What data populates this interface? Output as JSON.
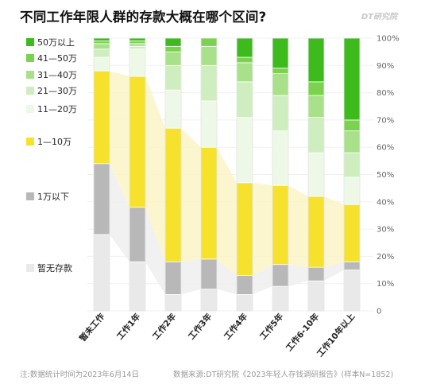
{
  "title": "不同工作年限人群的存款大概在哪个区间?",
  "logo": "DT研究院",
  "footer": {
    "note": "注:数据统计时间为2023年6月14日",
    "source": "数据来源:DT研究院《2023年轻人存钱调研报告》(样本N=1852)"
  },
  "colors": {
    "c50plus": "#3dba1c",
    "c41_50": "#7ad24e",
    "c31_40": "#a9e08a",
    "c21_30": "#cfeec0",
    "c11_20": "#edf9e6",
    "c1_10": "#f6e12c",
    "cunder1": "#b8b8b8",
    "cnone": "#e9e9e9",
    "band_yellow": "#fbf5c6",
    "band_gray": "#eeeeee"
  },
  "chart_data": {
    "type": "bar",
    "stacked": true,
    "categories": [
      "暂未工作",
      "工作1年",
      "工作2年",
      "工作3年",
      "工作4年",
      "工作5年",
      "工作6-10年",
      "工作10年以上"
    ],
    "ylim": [
      0,
      100
    ],
    "yticks": [
      "0",
      "10%",
      "20%",
      "30%",
      "40%",
      "50%",
      "60%",
      "70%",
      "80%",
      "90%",
      "100%"
    ],
    "legend_position": "left",
    "series": [
      {
        "name": "暂无存款",
        "color_key": "cnone",
        "values": [
          28,
          18,
          6,
          8,
          6,
          9,
          11,
          15
        ]
      },
      {
        "name": "1万以下",
        "color_key": "cunder1",
        "values": [
          26,
          20,
          12,
          11,
          7,
          8,
          5,
          3
        ]
      },
      {
        "name": "1—10万",
        "color_key": "c1_10",
        "values": [
          34,
          48,
          49,
          41,
          34,
          29,
          26,
          21
        ]
      },
      {
        "name": "11—20万",
        "color_key": "c11_20",
        "values": [
          5,
          10,
          14,
          17,
          24,
          20,
          16,
          10
        ]
      },
      {
        "name": "21—30万",
        "color_key": "c21_30",
        "values": [
          3,
          1,
          9,
          13,
          13,
          13,
          13,
          9
        ]
      },
      {
        "name": "31—40万",
        "color_key": "c31_40",
        "values": [
          2,
          1,
          5,
          7,
          7,
          8,
          8,
          8
        ]
      },
      {
        "name": "41—50万",
        "color_key": "c41_50",
        "values": [
          1,
          1,
          2,
          3,
          2,
          2,
          5,
          4
        ]
      },
      {
        "name": "50万以上",
        "color_key": "c50plus",
        "values": [
          1,
          1,
          3,
          0,
          7,
          11,
          16,
          30
        ]
      }
    ],
    "legend_entries": [
      {
        "name": "50万以上",
        "color_key": "c50plus"
      },
      {
        "name": "41—50万",
        "color_key": "c41_50"
      },
      {
        "name": "31—40万",
        "color_key": "c31_40"
      },
      {
        "name": "21—30万",
        "color_key": "c21_30"
      },
      {
        "name": "11—20万",
        "color_key": "c11_20"
      },
      {
        "name": "1—10万",
        "color_key": "c1_10"
      },
      {
        "name": "1万以下",
        "color_key": "cunder1"
      },
      {
        "name": "暂无存款",
        "color_key": "cnone"
      }
    ]
  }
}
